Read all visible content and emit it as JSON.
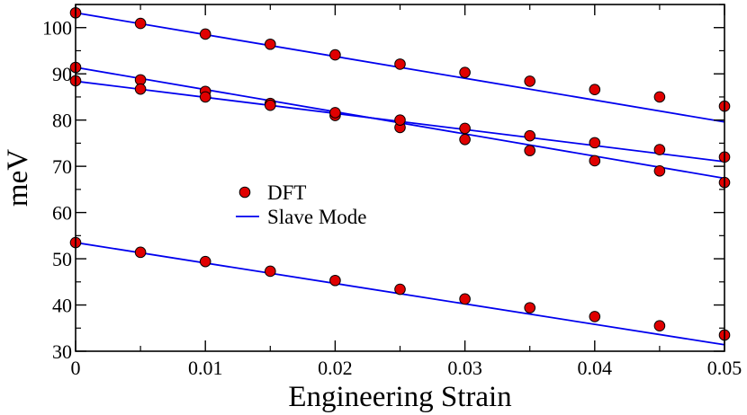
{
  "chart_data": {
    "type": "scatter",
    "xlabel": "Engineering Strain",
    "ylabel": "meV",
    "xlim": [
      0,
      0.05
    ],
    "ylim": [
      30,
      105
    ],
    "xticks": [
      0,
      0.01,
      0.02,
      0.03,
      0.04,
      0.05
    ],
    "xtick_labels": [
      "0",
      "0.01",
      "0.02",
      "0.03",
      "0.04",
      "0.05"
    ],
    "yticks": [
      30,
      40,
      50,
      60,
      70,
      80,
      90,
      100
    ],
    "ytick_labels": [
      "30",
      "40",
      "50",
      "60",
      "70",
      "80",
      "90",
      "100"
    ],
    "grid": false,
    "legend": {
      "position": "center-left",
      "entries": [
        {
          "label": "DFT",
          "kind": "marker"
        },
        {
          "label": "Slave Mode",
          "kind": "line"
        }
      ]
    },
    "colors": {
      "marker_fill": "#e00000",
      "marker_edge": "#000000",
      "line": "#0000ee"
    },
    "x": [
      0,
      0.005,
      0.01,
      0.015,
      0.02,
      0.025,
      0.03,
      0.035,
      0.04,
      0.045,
      0.05
    ],
    "series": [
      {
        "name": "DFT A",
        "kind": "marker",
        "values": [
          103.2,
          100.9,
          98.6,
          96.4,
          94.1,
          92.1,
          90.3,
          88.4,
          86.6,
          85.0,
          83.0
        ]
      },
      {
        "name": "DFT B",
        "kind": "marker",
        "values": [
          91.4,
          88.7,
          86.2,
          83.6,
          81.0,
          78.4,
          75.8,
          73.4,
          71.2,
          69.0,
          66.5
        ]
      },
      {
        "name": "DFT C",
        "kind": "marker",
        "values": [
          88.5,
          86.7,
          85.0,
          83.2,
          81.6,
          80.0,
          78.2,
          76.6,
          75.1,
          73.6,
          72.0
        ]
      },
      {
        "name": "DFT D",
        "kind": "marker",
        "values": [
          53.5,
          51.4,
          49.4,
          47.3,
          45.3,
          43.4,
          41.3,
          39.4,
          37.5,
          35.5,
          33.5
        ]
      },
      {
        "name": "Slave Mode A",
        "kind": "line",
        "x": [
          0,
          0.05
        ],
        "values": [
          103.2,
          79.6
        ]
      },
      {
        "name": "Slave Mode B",
        "kind": "line",
        "x": [
          0,
          0.05
        ],
        "values": [
          91.4,
          67.4
        ]
      },
      {
        "name": "Slave Mode C",
        "kind": "line",
        "x": [
          0,
          0.05
        ],
        "values": [
          88.4,
          71.0
        ]
      },
      {
        "name": "Slave Mode D",
        "kind": "line",
        "x": [
          0,
          0.05
        ],
        "values": [
          53.5,
          31.4
        ]
      }
    ]
  }
}
